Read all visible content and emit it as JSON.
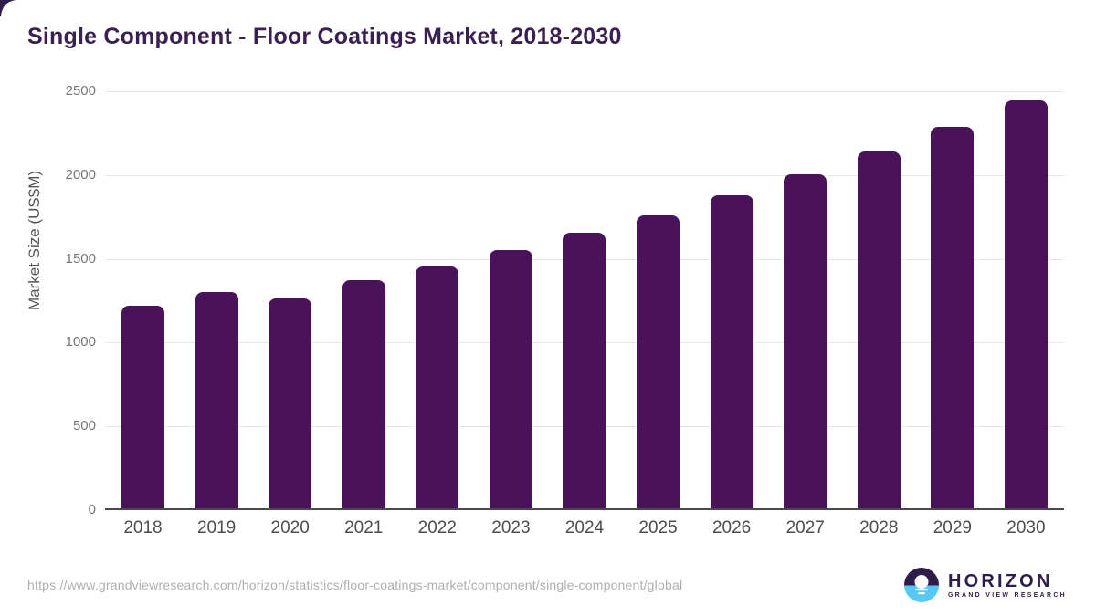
{
  "chart_data": {
    "type": "bar",
    "title": "Single Component - Floor Coatings Market, 2018-2030",
    "xlabel": "",
    "ylabel": "Market Size (US$M)",
    "categories": [
      "2018",
      "2019",
      "2020",
      "2021",
      "2022",
      "2023",
      "2024",
      "2025",
      "2026",
      "2027",
      "2028",
      "2029",
      "2030"
    ],
    "values": [
      1210,
      1290,
      1250,
      1360,
      1445,
      1540,
      1645,
      1750,
      1870,
      1995,
      2130,
      2275,
      2435
    ],
    "ylim": [
      0,
      2500
    ],
    "yticks": [
      0,
      500,
      1000,
      1500,
      2000,
      2500
    ],
    "grid": true,
    "legend": "none",
    "bar_color": "#4a1259"
  },
  "colors": {
    "title_text": "#3a1f53",
    "bar_fill": "#4a1259",
    "axis_line": "#4a4a4a",
    "gridline": "#e9e7ec",
    "y_tick_text": "#767676",
    "x_tick_text": "#4d4d4d",
    "url_text": "#b0afaf",
    "logo_purple": "#2e1d49",
    "logo_blue": "#58c7f3"
  },
  "footer": {
    "source_url": "https://www.grandviewresearch.com/horizon/statistics/floor-coatings-market/component/single-component/global",
    "logo_title": "HORIZON",
    "logo_subtitle": "GRAND VIEW RESEARCH"
  }
}
